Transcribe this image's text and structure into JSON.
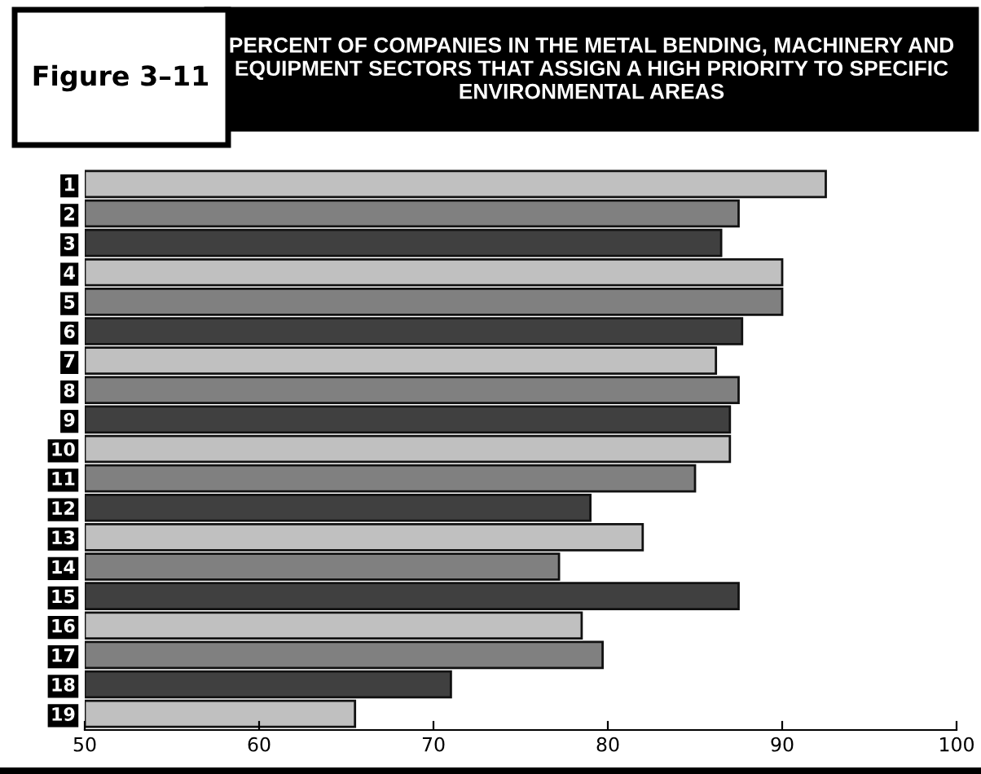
{
  "chart_data": {
    "type": "bar",
    "orientation": "horizontal",
    "title": "PERCENT OF COMPANIES IN THE METAL BENDING, MACHINERY AND EQUIPMENT SECTORS THAT ASSIGN A HIGH PRIORITY TO SPECIFIC ENVIRONMENTAL AREAS",
    "annotations": [
      "Figure 3–11"
    ],
    "categories": [
      "1",
      "2",
      "3",
      "4",
      "5",
      "6",
      "7",
      "8",
      "9",
      "10",
      "11",
      "12",
      "13",
      "14",
      "15",
      "16",
      "17",
      "18",
      "19"
    ],
    "values": [
      92.5,
      87.5,
      86.5,
      90,
      90,
      87.7,
      86.2,
      87.5,
      87,
      87,
      85,
      79,
      82,
      77.2,
      87.5,
      78.5,
      79.7,
      71,
      65.5
    ],
    "colors": [
      "#c0c0c0",
      "#808080",
      "#404040",
      "#c0c0c0",
      "#808080",
      "#404040",
      "#c0c0c0",
      "#808080",
      "#404040",
      "#c0c0c0",
      "#808080",
      "#404040",
      "#c0c0c0",
      "#808080",
      "#404040",
      "#c0c0c0",
      "#808080",
      "#404040",
      "#c0c0c0"
    ],
    "xlim": [
      50,
      100
    ],
    "xticks": [
      50,
      60,
      70,
      80,
      90,
      100
    ],
    "grid": false,
    "legend": false
  }
}
